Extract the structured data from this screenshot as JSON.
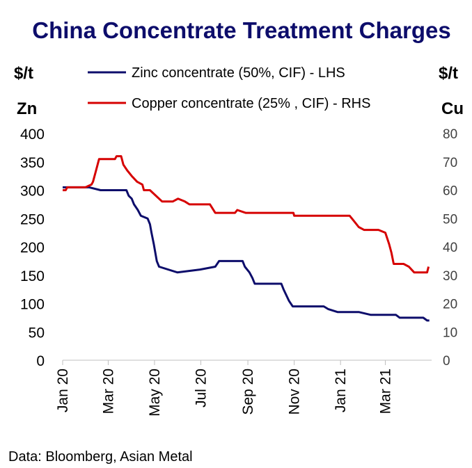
{
  "chart_data": {
    "type": "line",
    "title": "China Concentrate Treatment Charges",
    "left_unit": "$/t",
    "left_label": "Zn",
    "right_unit": "$/t",
    "right_label": "Cu",
    "source": "Data: Bloomberg, Asian Metal",
    "x_ticks": [
      "Jan 20",
      "Mar 20",
      "May 20",
      "Jul 20",
      "Sep 20",
      "Nov 20",
      "Jan 21",
      "Mar 21"
    ],
    "x_range": [
      "2020-01-01",
      "2021-05-01"
    ],
    "y_left": {
      "range": [
        0,
        400
      ],
      "ticks": [
        "0",
        "50",
        "100",
        "150",
        "200",
        "250",
        "300",
        "350",
        "400"
      ]
    },
    "y_right": {
      "range": [
        0,
        80
      ],
      "ticks": [
        "0",
        "10",
        "20",
        "30",
        "40",
        "50",
        "60",
        "70",
        "80"
      ]
    },
    "grid": false,
    "legend_position": "top",
    "series": [
      {
        "name": "Zinc concentrate (50%, CIF) - LHS",
        "axis": "left",
        "color": "#0d0d6b",
        "points": [
          [
            "2020-01-01",
            305
          ],
          [
            "2020-02-05",
            305
          ],
          [
            "2020-02-20",
            300
          ],
          [
            "2020-03-25",
            300
          ],
          [
            "2020-03-28",
            290
          ],
          [
            "2020-04-01",
            285
          ],
          [
            "2020-04-04",
            275
          ],
          [
            "2020-04-09",
            265
          ],
          [
            "2020-04-13",
            255
          ],
          [
            "2020-04-22",
            250
          ],
          [
            "2020-04-25",
            240
          ],
          [
            "2020-04-27",
            225
          ],
          [
            "2020-04-30",
            205
          ],
          [
            "2020-05-04",
            175
          ],
          [
            "2020-05-07",
            165
          ],
          [
            "2020-05-31",
            155
          ],
          [
            "2020-06-30",
            160
          ],
          [
            "2020-07-20",
            165
          ],
          [
            "2020-07-25",
            175
          ],
          [
            "2020-08-25",
            175
          ],
          [
            "2020-08-28",
            165
          ],
          [
            "2020-09-03",
            155
          ],
          [
            "2020-09-07",
            145
          ],
          [
            "2020-09-10",
            135
          ],
          [
            "2020-10-15",
            135
          ],
          [
            "2020-10-18",
            125
          ],
          [
            "2020-10-25",
            105
          ],
          [
            "2020-10-30",
            95
          ],
          [
            "2020-12-10",
            95
          ],
          [
            "2020-12-16",
            90
          ],
          [
            "2020-12-28",
            85
          ],
          [
            "2021-01-25",
            85
          ],
          [
            "2021-02-10",
            80
          ],
          [
            "2021-03-15",
            80
          ],
          [
            "2021-03-20",
            75
          ],
          [
            "2021-04-20",
            75
          ],
          [
            "2021-04-25",
            70
          ],
          [
            "2021-04-28",
            70
          ]
        ]
      },
      {
        "name": "Copper concentrate (25% , CIF) - RHS",
        "axis": "right",
        "color": "#d60000",
        "points": [
          [
            "2020-01-01",
            60
          ],
          [
            "2020-01-05",
            60
          ],
          [
            "2020-01-07",
            61
          ],
          [
            "2020-01-31",
            61
          ],
          [
            "2020-02-08",
            62
          ],
          [
            "2020-02-10",
            63
          ],
          [
            "2020-02-14",
            67
          ],
          [
            "2020-02-18",
            71
          ],
          [
            "2020-03-10",
            71
          ],
          [
            "2020-03-12",
            72
          ],
          [
            "2020-03-18",
            72
          ],
          [
            "2020-03-21",
            69
          ],
          [
            "2020-03-26",
            67
          ],
          [
            "2020-04-01",
            65
          ],
          [
            "2020-04-08",
            63
          ],
          [
            "2020-04-15",
            62
          ],
          [
            "2020-04-17",
            60
          ],
          [
            "2020-04-25",
            60
          ],
          [
            "2020-05-03",
            58
          ],
          [
            "2020-05-11",
            56
          ],
          [
            "2020-05-25",
            56
          ],
          [
            "2020-06-01",
            57
          ],
          [
            "2020-06-10",
            56
          ],
          [
            "2020-06-16",
            55
          ],
          [
            "2020-07-13",
            55
          ],
          [
            "2020-07-20",
            52
          ],
          [
            "2020-08-15",
            52
          ],
          [
            "2020-08-18",
            53
          ],
          [
            "2020-08-29",
            52
          ],
          [
            "2020-10-31",
            52
          ],
          [
            "2020-11-01",
            51
          ],
          [
            "2021-01-13",
            51
          ],
          [
            "2021-01-19",
            49
          ],
          [
            "2021-01-25",
            47
          ],
          [
            "2021-02-01",
            46
          ],
          [
            "2021-02-20",
            46
          ],
          [
            "2021-03-01",
            45
          ],
          [
            "2021-03-06",
            41
          ],
          [
            "2021-03-09",
            38
          ],
          [
            "2021-03-12",
            34
          ],
          [
            "2021-03-25",
            34
          ],
          [
            "2021-04-01",
            33
          ],
          [
            "2021-04-08",
            31
          ],
          [
            "2021-04-25",
            31
          ],
          [
            "2021-04-27",
            33
          ]
        ]
      }
    ]
  }
}
